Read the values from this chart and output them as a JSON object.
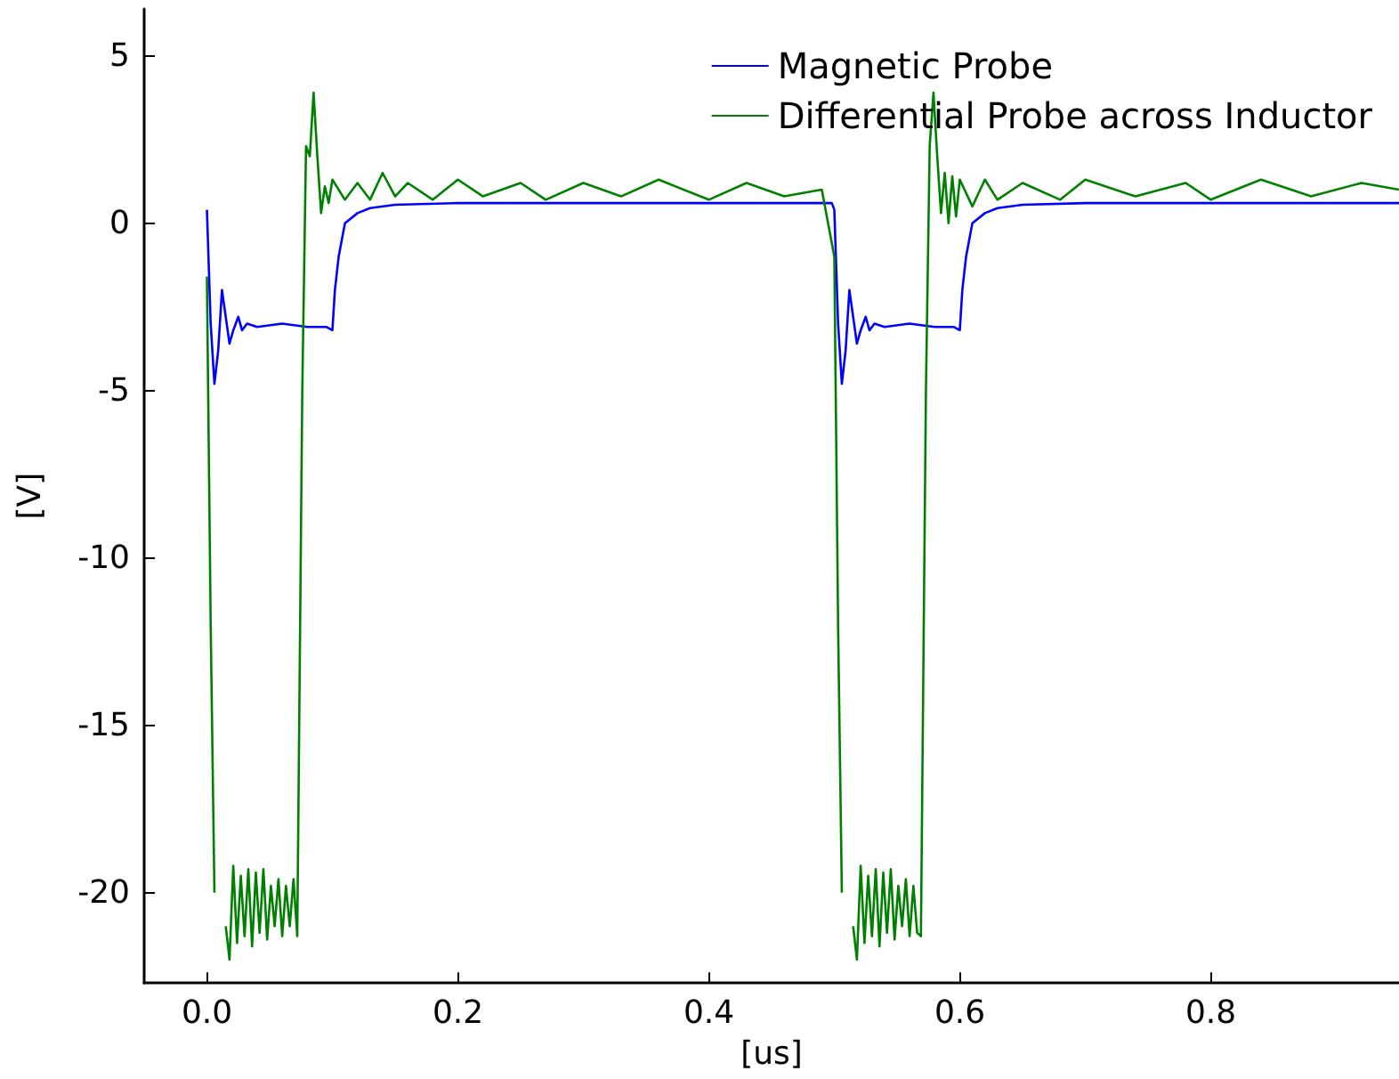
{
  "chart_data": {
    "type": "line",
    "xlabel": "[us]",
    "ylabel": "[V]",
    "xlim": [
      -0.05,
      0.95
    ],
    "ylim": [
      -22.7,
      6.4
    ],
    "xticks": [
      {
        "value": 0,
        "label": "0.0"
      },
      0.2,
      0.4,
      0.6,
      0.8
    ],
    "yticks": [
      -20,
      -15,
      -10,
      -5,
      0,
      5
    ],
    "grid": false,
    "legend": "top right",
    "marker": "none",
    "line_style": "solid",
    "series": [
      {
        "name": "Magnetic Probe",
        "color": "#0000ff",
        "x": [
          0,
          0.003,
          0.006,
          0.009,
          0.012,
          0.015,
          0.018,
          0.021,
          0.025,
          0.028,
          0.032,
          0.04,
          0.06,
          0.08,
          0.095,
          0.1,
          0.102,
          0.105,
          0.11,
          0.12,
          0.13,
          0.15,
          0.2,
          0.3,
          0.4,
          0.498,
          0.5,
          0.503,
          0.506,
          0.509,
          0.512,
          0.515,
          0.518,
          0.521,
          0.525,
          0.528,
          0.532,
          0.54,
          0.56,
          0.58,
          0.595,
          0.6,
          0.602,
          0.605,
          0.61,
          0.62,
          0.63,
          0.65,
          0.7,
          0.8,
          0.95
        ],
        "values": [
          0.4,
          -3,
          -4.8,
          -3.8,
          -2,
          -2.8,
          -3.6,
          -3.2,
          -2.8,
          -3.2,
          -3,
          -3.1,
          -3,
          -3.1,
          -3.1,
          -3.2,
          -2,
          -1,
          0,
          0.3,
          0.45,
          0.55,
          0.6,
          0.6,
          0.6,
          0.6,
          0.4,
          -3,
          -4.8,
          -3.8,
          -2,
          -2.8,
          -3.6,
          -3.2,
          -2.8,
          -3.2,
          -3,
          -3.1,
          -3,
          -3.1,
          -3.1,
          -3.2,
          -2,
          -1,
          0,
          0.3,
          0.45,
          0.55,
          0.6,
          0.6,
          0.6
        ]
      },
      {
        "name": "Differential Probe across Inductor",
        "color": "#008000",
        "x": [
          0,
          0.003,
          0.006,
          0.009,
          0.012,
          0.015,
          0.018,
          0.021,
          0.024,
          0.027,
          0.03,
          0.033,
          0.036,
          0.039,
          0.042,
          0.045,
          0.048,
          0.051,
          0.054,
          0.057,
          0.06,
          0.063,
          0.066,
          0.069,
          0.072,
          0.076,
          0.079,
          0.082,
          0.085,
          0.088,
          0.091,
          0.094,
          0.097,
          0.1,
          0.11,
          0.12,
          0.13,
          0.14,
          0.15,
          0.16,
          0.18,
          0.2,
          0.22,
          0.25,
          0.27,
          0.3,
          0.33,
          0.36,
          0.4,
          0.43,
          0.46,
          0.49,
          0.5,
          0.503,
          0.506,
          0.509,
          0.512,
          0.515,
          0.518,
          0.521,
          0.524,
          0.527,
          0.53,
          0.533,
          0.536,
          0.539,
          0.542,
          0.545,
          0.548,
          0.551,
          0.554,
          0.557,
          0.56,
          0.563,
          0.566,
          0.569,
          0.573,
          0.576,
          0.579,
          0.582,
          0.585,
          0.588,
          0.591,
          0.594,
          0.597,
          0.6,
          0.61,
          0.62,
          0.63,
          0.65,
          0.68,
          0.7,
          0.74,
          0.78,
          0.8,
          0.84,
          0.88,
          0.92,
          0.95
        ],
        "values": [
          -1.6,
          -12,
          -20,
          null,
          null,
          -21,
          -22,
          -19.2,
          -21.5,
          -19.5,
          -21.3,
          -19.3,
          -21.6,
          -19.4,
          -21.2,
          -19.3,
          -21.4,
          -19.8,
          -21,
          -19.6,
          -21.3,
          -19.8,
          -21,
          -19.6,
          -21.3,
          -5,
          2.3,
          2,
          3.9,
          2,
          0.3,
          1.1,
          0.6,
          1.3,
          0.7,
          1.2,
          0.7,
          1.5,
          0.8,
          1.2,
          0.7,
          1.3,
          0.8,
          1.2,
          0.7,
          1.2,
          0.8,
          1.3,
          0.7,
          1.2,
          0.8,
          1,
          -1,
          -12,
          -20,
          null,
          null,
          -21,
          -22,
          -19.2,
          -21.5,
          -19.5,
          -21.3,
          -19.3,
          -21.6,
          -19.4,
          -21.2,
          -19.3,
          -21.4,
          -19.8,
          -21,
          -19.6,
          -21.3,
          -19.8,
          -21.2,
          -21.3,
          -5,
          2.3,
          3.9,
          2,
          0.3,
          1.5,
          0,
          1.4,
          0.2,
          1.3,
          0.5,
          1.3,
          0.7,
          1.2,
          0.7,
          1.3,
          0.8,
          1.2,
          0.7,
          1.3,
          0.8,
          1.2,
          1
        ]
      }
    ]
  }
}
